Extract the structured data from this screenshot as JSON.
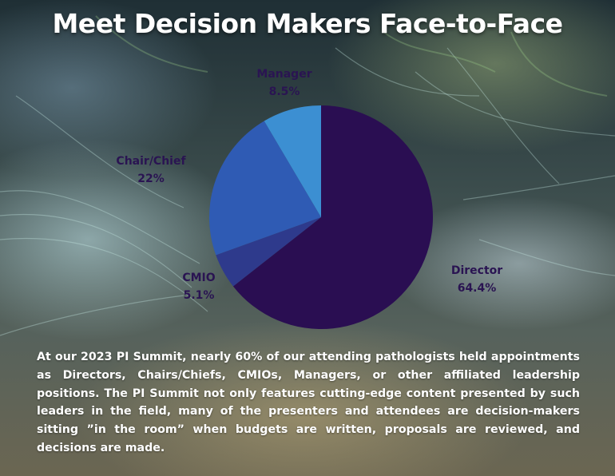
{
  "header": {
    "title": "Meet Decision Makers Face-to-Face"
  },
  "chart_data": {
    "type": "pie",
    "title": "",
    "slices": [
      {
        "label": "Director",
        "value": 64.4,
        "value_label": "64.4%",
        "color": "#2a0e52"
      },
      {
        "label": "CMIO",
        "value": 5.1,
        "value_label": "5.1%",
        "color": "#2e3a8c"
      },
      {
        "label": "Chair/Chief",
        "value": 22,
        "value_label": "22%",
        "color": "#2f5bb4"
      },
      {
        "label": "Manager",
        "value": 8.5,
        "value_label": "8.5%",
        "color": "#3c8fd2"
      }
    ],
    "start": "12 o'clock",
    "direction": "clockwise",
    "legend": "none (labels beside slices)"
  },
  "body": {
    "text": "At our 2023 PI Summit, nearly 60% of our attending pathologists held appointments as Directors, Chairs/Chiefs, CMIOs, Managers, or other affiliated leadership positions. The PI Summit not only features cutting-edge content presented by such leaders in the field, many of the presenters and attendees are decision-makers sitting ”in the room” when budgets are written, proposals are reviewed, and decisions are made."
  }
}
